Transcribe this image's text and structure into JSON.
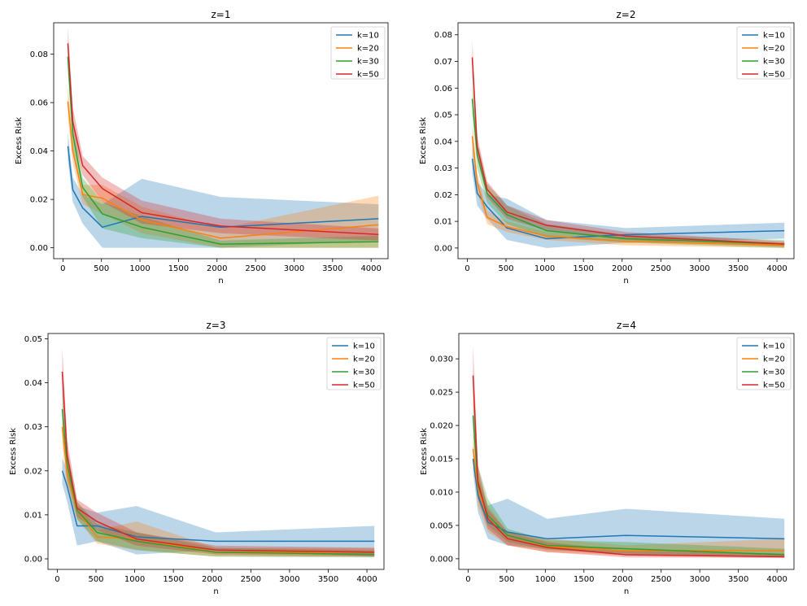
{
  "chart_data": [
    {
      "type": "line",
      "title": "z=1",
      "xlabel": "n",
      "ylabel": "Excess Risk",
      "xlim": [
        -120,
        4220
      ],
      "ylim": [
        -0.0045,
        0.093
      ],
      "xticks": [
        0,
        500,
        1000,
        1500,
        2000,
        2500,
        3000,
        3500,
        4000
      ],
      "yticks": [
        0.0,
        0.02,
        0.04,
        0.06,
        0.08
      ],
      "ytick_format": "%.2f",
      "legend": "top-right",
      "grid": false,
      "x": [
        64,
        128,
        256,
        512,
        1024,
        2048,
        4096
      ],
      "series": [
        {
          "name": "k=10",
          "color": "#1f77b4",
          "values": [
            0.042,
            0.024,
            0.0165,
            0.0085,
            0.013,
            0.0085,
            0.012
          ],
          "lower": [
            0.036,
            0.019,
            0.01,
            0.0,
            0.0,
            0.0,
            0.003
          ],
          "upper": [
            0.048,
            0.029,
            0.022,
            0.018,
            0.0285,
            0.021,
            0.018
          ]
        },
        {
          "name": "k=20",
          "color": "#ff7f0e",
          "values": [
            0.0605,
            0.04,
            0.022,
            0.0205,
            0.0115,
            0.004,
            0.0095
          ],
          "lower": [
            0.054,
            0.035,
            0.018,
            0.014,
            0.006,
            0.0,
            0.0
          ],
          "upper": [
            0.067,
            0.045,
            0.026,
            0.026,
            0.017,
            0.008,
            0.0215
          ]
        },
        {
          "name": "k=30",
          "color": "#2ca02c",
          "values": [
            0.079,
            0.047,
            0.025,
            0.014,
            0.0085,
            0.0015,
            0.0025
          ],
          "lower": [
            0.073,
            0.041,
            0.021,
            0.008,
            0.004,
            0.0,
            0.0
          ],
          "upper": [
            0.085,
            0.053,
            0.029,
            0.019,
            0.013,
            0.003,
            0.005
          ]
        },
        {
          "name": "k=50",
          "color": "#d62728",
          "values": [
            0.0845,
            0.052,
            0.034,
            0.0245,
            0.0145,
            0.009,
            0.0055
          ],
          "lower": [
            0.078,
            0.046,
            0.03,
            0.019,
            0.01,
            0.006,
            0.003
          ],
          "upper": [
            0.091,
            0.058,
            0.038,
            0.029,
            0.0195,
            0.012,
            0.008
          ]
        }
      ]
    },
    {
      "type": "line",
      "title": "z=2",
      "xlabel": "n",
      "ylabel": "Excess Risk",
      "xlim": [
        -120,
        4220
      ],
      "ylim": [
        -0.004,
        0.0845
      ],
      "xticks": [
        0,
        500,
        1000,
        1500,
        2000,
        2500,
        3000,
        3500,
        4000
      ],
      "yticks": [
        0.0,
        0.01,
        0.02,
        0.03,
        0.04,
        0.05,
        0.06,
        0.07,
        0.08
      ],
      "ytick_format": "%.2f",
      "legend": "top-right",
      "grid": false,
      "x": [
        64,
        128,
        256,
        512,
        1024,
        2048,
        4096
      ],
      "series": [
        {
          "name": "k=10",
          "color": "#1f77b4",
          "values": [
            0.0335,
            0.0205,
            0.0155,
            0.0075,
            0.0035,
            0.005,
            0.0065
          ],
          "lower": [
            0.028,
            0.016,
            0.011,
            0.003,
            0.0,
            0.002,
            0.0035
          ],
          "upper": [
            0.039,
            0.025,
            0.02,
            0.0185,
            0.0105,
            0.0075,
            0.0095
          ]
        },
        {
          "name": "k=20",
          "color": "#ff7f0e",
          "values": [
            0.042,
            0.0245,
            0.0115,
            0.008,
            0.0045,
            0.0025,
            0.001
          ],
          "lower": [
            0.037,
            0.021,
            0.009,
            0.006,
            0.003,
            0.001,
            0.0
          ],
          "upper": [
            0.047,
            0.028,
            0.014,
            0.01,
            0.006,
            0.004,
            0.002
          ]
        },
        {
          "name": "k=30",
          "color": "#2ca02c",
          "values": [
            0.056,
            0.035,
            0.0205,
            0.0125,
            0.0065,
            0.0035,
            0.0015
          ],
          "lower": [
            0.05,
            0.03,
            0.017,
            0.009,
            0.004,
            0.002,
            0.0
          ],
          "upper": [
            0.062,
            0.04,
            0.024,
            0.016,
            0.009,
            0.005,
            0.003
          ]
        },
        {
          "name": "k=50",
          "color": "#d62728",
          "values": [
            0.0715,
            0.038,
            0.022,
            0.0135,
            0.0085,
            0.0045,
            0.0015
          ],
          "lower": [
            0.065,
            0.034,
            0.019,
            0.011,
            0.0065,
            0.003,
            0.0005
          ],
          "upper": [
            0.078,
            0.042,
            0.025,
            0.016,
            0.0105,
            0.006,
            0.0025
          ]
        }
      ]
    },
    {
      "type": "line",
      "title": "z=3",
      "xlabel": "n",
      "ylabel": "Excess Risk",
      "xlim": [
        -120,
        4220
      ],
      "ylim": [
        -0.0024,
        0.0512
      ],
      "xticks": [
        0,
        500,
        1000,
        1500,
        2000,
        2500,
        3000,
        3500,
        4000
      ],
      "yticks": [
        0.0,
        0.01,
        0.02,
        0.03,
        0.04,
        0.05
      ],
      "ytick_format": "%.2f",
      "legend": "top-right",
      "grid": false,
      "x": [
        64,
        128,
        256,
        512,
        1024,
        2048,
        4096
      ],
      "series": [
        {
          "name": "k=10",
          "color": "#1f77b4",
          "values": [
            0.02,
            0.0165,
            0.0075,
            0.0075,
            0.005,
            0.004,
            0.004
          ],
          "lower": [
            0.017,
            0.013,
            0.003,
            0.004,
            0.001,
            0.002,
            0.0005
          ],
          "upper": [
            0.023,
            0.02,
            0.012,
            0.0105,
            0.012,
            0.006,
            0.0075
          ]
        },
        {
          "name": "k=20",
          "color": "#ff7f0e",
          "values": [
            0.03,
            0.019,
            0.011,
            0.005,
            0.0045,
            0.0015,
            0.0015
          ],
          "lower": [
            0.026,
            0.016,
            0.009,
            0.0035,
            0.002,
            0.0005,
            0.0005
          ],
          "upper": [
            0.034,
            0.022,
            0.013,
            0.0065,
            0.0085,
            0.0025,
            0.0025
          ]
        },
        {
          "name": "k=30",
          "color": "#2ca02c",
          "values": [
            0.034,
            0.0215,
            0.011,
            0.006,
            0.004,
            0.0015,
            0.001
          ],
          "lower": [
            0.03,
            0.018,
            0.009,
            0.004,
            0.002,
            0.0005,
            0.0003
          ],
          "upper": [
            0.038,
            0.025,
            0.013,
            0.008,
            0.006,
            0.0025,
            0.002
          ]
        },
        {
          "name": "k=50",
          "color": "#d62728",
          "values": [
            0.0425,
            0.0235,
            0.0115,
            0.0085,
            0.0045,
            0.002,
            0.0015
          ],
          "lower": [
            0.037,
            0.02,
            0.0095,
            0.0065,
            0.003,
            0.001,
            0.0005
          ],
          "upper": [
            0.048,
            0.027,
            0.0135,
            0.0105,
            0.006,
            0.003,
            0.0025
          ]
        }
      ]
    },
    {
      "type": "line",
      "title": "z=4",
      "xlabel": "n",
      "ylabel": "Excess Risk",
      "xlim": [
        -120,
        4220
      ],
      "ylim": [
        -0.0016,
        0.0338
      ],
      "xticks": [
        0,
        500,
        1000,
        1500,
        2000,
        2500,
        3000,
        3500,
        4000
      ],
      "yticks": [
        0.0,
        0.005,
        0.01,
        0.015,
        0.02,
        0.025,
        0.03
      ],
      "ytick_format": "%.3f",
      "legend": "top-right",
      "grid": false,
      "x": [
        64,
        128,
        256,
        512,
        1024,
        2048,
        4096
      ],
      "series": [
        {
          "name": "k=10",
          "color": "#1f77b4",
          "values": [
            0.015,
            0.0095,
            0.0055,
            0.004,
            0.003,
            0.0035,
            0.003
          ],
          "lower": [
            0.013,
            0.007,
            0.003,
            0.002,
            0.0015,
            0.0005,
            0.0003
          ],
          "upper": [
            0.017,
            0.012,
            0.008,
            0.009,
            0.006,
            0.0075,
            0.006
          ]
        },
        {
          "name": "k=20",
          "color": "#ff7f0e",
          "values": [
            0.0165,
            0.0105,
            0.006,
            0.003,
            0.0018,
            0.0012,
            0.0012
          ],
          "lower": [
            0.014,
            0.008,
            0.004,
            0.002,
            0.001,
            0.0005,
            0.0003
          ],
          "upper": [
            0.019,
            0.013,
            0.008,
            0.004,
            0.003,
            0.002,
            0.003
          ]
        },
        {
          "name": "k=30",
          "color": "#2ca02c",
          "values": [
            0.0215,
            0.011,
            0.0065,
            0.0035,
            0.002,
            0.0015,
            0.0006
          ],
          "lower": [
            0.019,
            0.009,
            0.005,
            0.0025,
            0.0013,
            0.0008,
            0.0002
          ],
          "upper": [
            0.024,
            0.014,
            0.009,
            0.0045,
            0.0028,
            0.0025,
            0.0015
          ]
        },
        {
          "name": "k=50",
          "color": "#d62728",
          "values": [
            0.0275,
            0.0115,
            0.006,
            0.003,
            0.0017,
            0.0006,
            0.0003
          ],
          "lower": [
            0.024,
            0.009,
            0.0045,
            0.002,
            0.001,
            0.0002,
            0.0001
          ],
          "upper": [
            0.032,
            0.014,
            0.0075,
            0.004,
            0.0025,
            0.0012,
            0.0008
          ]
        }
      ]
    }
  ]
}
